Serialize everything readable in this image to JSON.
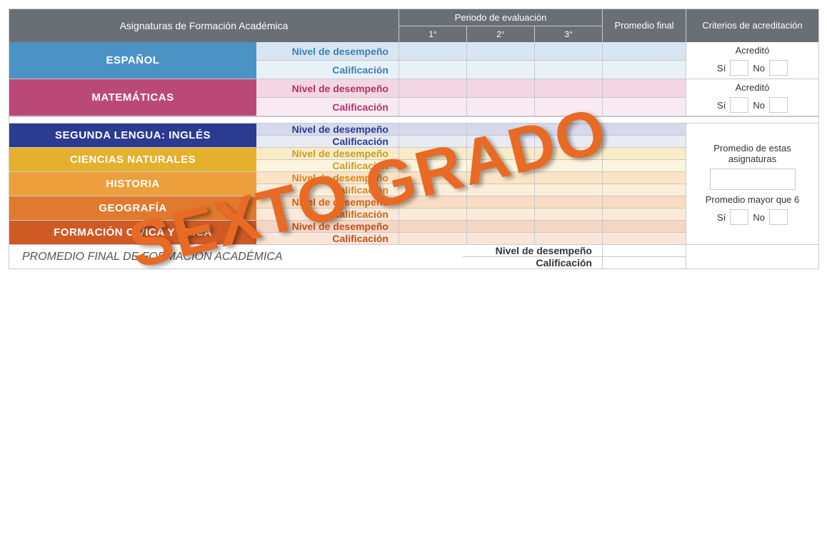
{
  "header": {
    "subjects_title": "Asignaturas de Formación Académica",
    "periods_title": "Periodo de evaluación",
    "p1": "1°",
    "p2": "2°",
    "p3": "3°",
    "final_avg": "Promedio final",
    "criteria": "Criterios de acreditación"
  },
  "labels": {
    "nivel": "Nivel de desempeño",
    "calif": "Calificación",
    "acredito": "Acreditó",
    "si": "Sí",
    "no": "No",
    "prom_estas": "Promedio de estas asignaturas",
    "prom_mayor6": "Promedio mayor que 6",
    "footer_title": "PROMEDIO FINAL DE FORMACIÓN ACADÉMICA"
  },
  "watermark": "SEXTO GRADO",
  "group1": [
    {
      "name": "ESPAÑOL",
      "name_bg": "#4b93c4",
      "text_color": "#3b7eb7",
      "tint_light": "#d7e6f2",
      "tint_lighter": "#e9f1f8"
    },
    {
      "name": "MATEMÁTICAS",
      "name_bg": "#bb4978",
      "text_color": "#b1326a",
      "tint_light": "#f2d7e3",
      "tint_lighter": "#f9e9f0"
    }
  ],
  "group2": [
    {
      "name": "SEGUNDA LENGUA: INGLÉS",
      "name_bg": "#2b3b8f",
      "text_color": "#2b3b8f",
      "tint_light": "#d6d9ec",
      "tint_lighter": "#e8eaf4"
    },
    {
      "name": "CIENCIAS NATURALES",
      "name_bg": "#e4b02e",
      "text_color": "#d19a1e",
      "tint_light": "#f8ecc8",
      "tint_lighter": "#fcf4de"
    },
    {
      "name": "HISTORIA",
      "name_bg": "#ec9f3a",
      "text_color": "#d9861e",
      "tint_light": "#fae4c5",
      "tint_lighter": "#fcefda"
    },
    {
      "name": "GEOGRAFÍA",
      "name_bg": "#e17a2e",
      "text_color": "#cf6418",
      "tint_light": "#f8dcc3",
      "tint_lighter": "#fbead9"
    },
    {
      "name": "FORMACIÓN CÍVICA Y ÉTICA",
      "name_bg": "#cf5a24",
      "text_color": "#c24f1a",
      "tint_light": "#f5d6c3",
      "tint_lighter": "#f9e6d9"
    }
  ]
}
